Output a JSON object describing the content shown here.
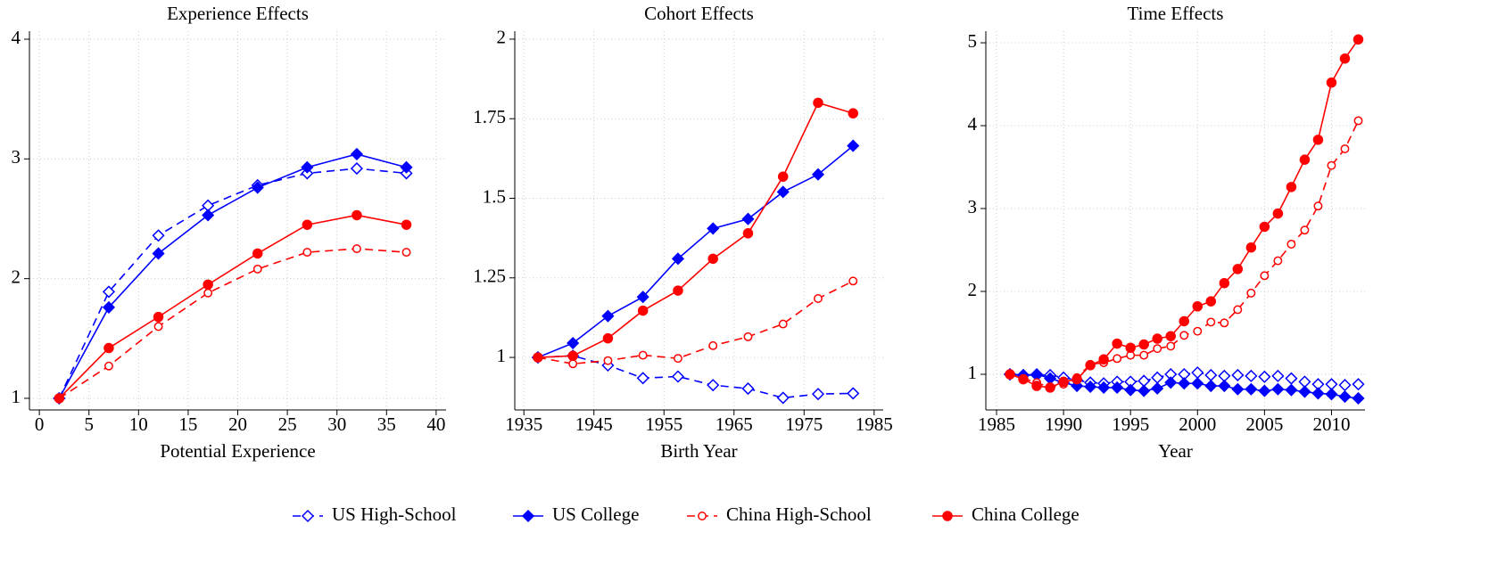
{
  "chart_data": [
    {
      "type": "line",
      "title": "Experience Effects",
      "x_label": "Potential Experience",
      "x": [
        2,
        7,
        12,
        17,
        22,
        27,
        32,
        37
      ],
      "xlim": [
        -1,
        41
      ],
      "xticks": [
        0,
        5,
        10,
        15,
        20,
        25,
        30,
        35,
        40
      ],
      "ylim": [
        0.903,
        4.067
      ],
      "yticks": [
        1,
        2,
        3,
        4
      ],
      "grid": true,
      "series": [
        {
          "color": "#0000ff",
          "marker": "diamond-open",
          "dash": true,
          "values": [
            1,
            1.89,
            2.36,
            2.61,
            2.78,
            2.88,
            2.92,
            2.88
          ]
        },
        {
          "color": "#0000ff",
          "marker": "diamond",
          "dash": false,
          "values": [
            1,
            1.76,
            2.21,
            2.53,
            2.76,
            2.93,
            3.04,
            2.93
          ]
        },
        {
          "color": "#ff0000",
          "marker": "circle-open",
          "dash": true,
          "values": [
            1,
            1.27,
            1.6,
            1.88,
            2.08,
            2.22,
            2.25,
            2.22
          ]
        },
        {
          "color": "#ff0000",
          "marker": "circle",
          "dash": false,
          "values": [
            1,
            1.42,
            1.68,
            1.95,
            2.21,
            2.45,
            2.53,
            2.45
          ]
        }
      ]
    },
    {
      "type": "line",
      "title": "Cohort Effects",
      "x_label": "Birth Year",
      "x": [
        1937,
        1942,
        1947,
        1952,
        1957,
        1962,
        1967,
        1972,
        1977,
        1982
      ],
      "xlim": [
        1933.7,
        1986.3
      ],
      "xticks": [
        1935,
        1945,
        1955,
        1965,
        1975,
        1985
      ],
      "ylim": [
        0.835,
        2.025
      ],
      "yticks": [
        1,
        1.25,
        1.5,
        1.75,
        2
      ],
      "grid": true,
      "series": [
        {
          "color": "#0000ff",
          "marker": "diamond-open",
          "dash": true,
          "values": [
            1,
            1.005,
            0.975,
            0.935,
            0.94,
            0.913,
            0.902,
            0.873,
            0.885,
            0.887
          ]
        },
        {
          "color": "#0000ff",
          "marker": "diamond",
          "dash": false,
          "values": [
            1,
            1.045,
            1.13,
            1.19,
            1.31,
            1.405,
            1.435,
            1.52,
            1.575,
            1.665
          ]
        },
        {
          "color": "#ff0000",
          "marker": "circle-open",
          "dash": true,
          "values": [
            1,
            0.98,
            0.99,
            1.007,
            0.997,
            1.037,
            1.065,
            1.105,
            1.185,
            1.24
          ]
        },
        {
          "color": "#ff0000",
          "marker": "circle",
          "dash": false,
          "values": [
            1,
            1.005,
            1.06,
            1.147,
            1.21,
            1.31,
            1.39,
            1.568,
            1.8,
            1.767
          ]
        }
      ]
    },
    {
      "type": "line",
      "title": "Time Effects",
      "x_label": "Year",
      "x": [
        1986,
        1987,
        1988,
        1989,
        1990,
        1991,
        1992,
        1993,
        1994,
        1995,
        1996,
        1997,
        1998,
        1999,
        2000,
        2001,
        2002,
        2003,
        2004,
        2005,
        2006,
        2007,
        2008,
        2009,
        2010,
        2011,
        2012
      ],
      "xlim": [
        1984.2,
        2012.5
      ],
      "xticks": [
        1985,
        1990,
        1995,
        2000,
        2005,
        2010
      ],
      "ylim": [
        0.57,
        5.14
      ],
      "yticks": [
        1,
        2,
        3,
        4,
        5
      ],
      "grid": true,
      "series": [
        {
          "color": "#0000ff",
          "marker": "diamond-open",
          "dash": true,
          "values": [
            1.0,
            0.99,
            0.99,
            0.99,
            0.96,
            0.93,
            0.9,
            0.89,
            0.91,
            0.91,
            0.92,
            0.96,
            1.0,
            1.0,
            1.02,
            0.99,
            0.98,
            0.99,
            0.98,
            0.97,
            0.98,
            0.95,
            0.91,
            0.88,
            0.88,
            0.87,
            0.88
          ]
        },
        {
          "color": "#0000ff",
          "marker": "diamond",
          "dash": false,
          "values": [
            1.0,
            0.99,
            1.0,
            0.95,
            0.9,
            0.86,
            0.85,
            0.84,
            0.84,
            0.81,
            0.8,
            0.83,
            0.9,
            0.89,
            0.89,
            0.86,
            0.86,
            0.82,
            0.82,
            0.8,
            0.82,
            0.81,
            0.79,
            0.77,
            0.76,
            0.73,
            0.71
          ]
        },
        {
          "color": "#ff0000",
          "marker": "circle-open",
          "dash": true,
          "values": [
            1.0,
            0.95,
            0.9,
            0.84,
            0.88,
            0.96,
            1.12,
            1.14,
            1.19,
            1.23,
            1.23,
            1.31,
            1.34,
            1.47,
            1.52,
            1.63,
            1.62,
            1.78,
            1.98,
            2.19,
            2.37,
            2.57,
            2.74,
            3.03,
            3.52,
            3.72,
            4.06
          ]
        },
        {
          "color": "#ff0000",
          "marker": "circle",
          "dash": false,
          "values": [
            1.0,
            0.94,
            0.86,
            0.84,
            0.91,
            0.94,
            1.11,
            1.18,
            1.37,
            1.32,
            1.36,
            1.43,
            1.46,
            1.64,
            1.82,
            1.88,
            2.1,
            2.27,
            2.53,
            2.78,
            2.94,
            3.26,
            3.59,
            3.83,
            4.52,
            4.81,
            5.04
          ]
        }
      ]
    }
  ],
  "legend": [
    {
      "name": "US High-School",
      "color": "#0000ff",
      "marker": "diamond-open",
      "dash": true
    },
    {
      "name": "US College",
      "color": "#0000ff",
      "marker": "diamond",
      "dash": false
    },
    {
      "name": "China High-School",
      "color": "#ff0000",
      "marker": "circle-open",
      "dash": true
    },
    {
      "name": "China College",
      "color": "#ff0000",
      "marker": "circle",
      "dash": false
    }
  ]
}
